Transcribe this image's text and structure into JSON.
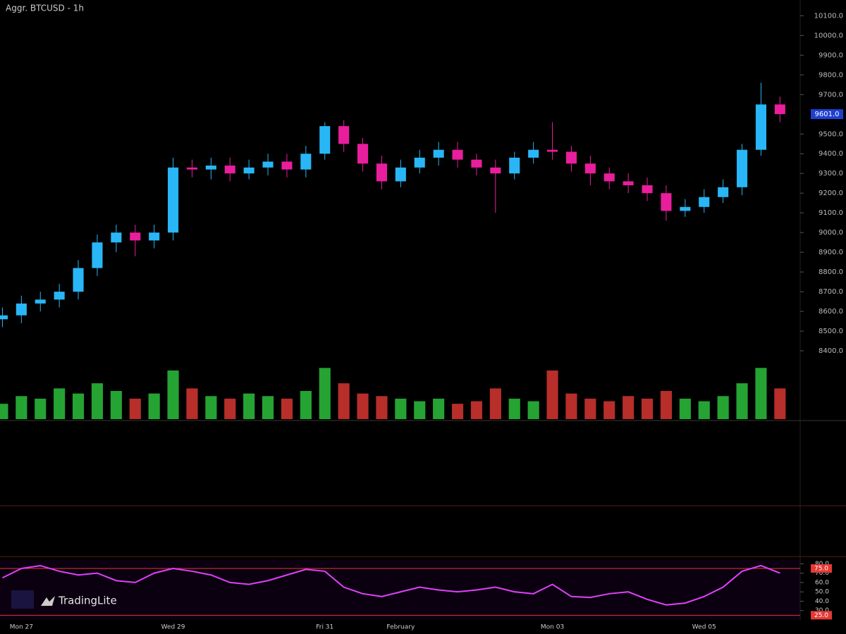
{
  "header": {
    "title": "Aggr. BTCUSD - 1h"
  },
  "logo": {
    "text": "TradingLite"
  },
  "chart_data": [
    {
      "type": "candlestick",
      "categories": [
        null,
        "Mon 27",
        null,
        null,
        null,
        null,
        null,
        null,
        null,
        "Wed 29",
        null,
        null,
        null,
        null,
        null,
        null,
        null,
        "Fri 31",
        null,
        null,
        null,
        "February",
        null,
        null,
        null,
        null,
        null,
        null,
        null,
        "Mon 03",
        null,
        null,
        null,
        null,
        null,
        null,
        null,
        "Wed 05",
        null,
        null,
        null,
        null
      ],
      "opens": [
        8560,
        8580,
        8640,
        8660,
        8700,
        8820,
        8950,
        9000,
        8960,
        9000,
        9330,
        9320,
        9340,
        9300,
        9330,
        9360,
        9320,
        9400,
        9540,
        9450,
        9350,
        9260,
        9330,
        9380,
        9420,
        9370,
        9330,
        9300,
        9380,
        9420,
        9410,
        9350,
        9300,
        9260,
        9240,
        9200,
        9110,
        9130,
        9180,
        9230,
        9420,
        9650
      ],
      "highs": [
        8620,
        8680,
        8700,
        8740,
        8860,
        8990,
        9040,
        9040,
        9040,
        9380,
        9370,
        9380,
        9380,
        9370,
        9400,
        9400,
        9440,
        9560,
        9570,
        9480,
        9390,
        9370,
        9420,
        9460,
        9460,
        9400,
        9370,
        9410,
        9460,
        9560,
        9440,
        9390,
        9330,
        9300,
        9280,
        9240,
        9170,
        9220,
        9270,
        9450,
        9760,
        9690
      ],
      "lows": [
        8520,
        8540,
        8600,
        8620,
        8660,
        8780,
        8900,
        8880,
        8920,
        8960,
        9280,
        9270,
        9260,
        9270,
        9290,
        9280,
        9280,
        9370,
        9410,
        9310,
        9220,
        9230,
        9300,
        9340,
        9330,
        9290,
        9100,
        9270,
        9350,
        9370,
        9310,
        9240,
        9220,
        9200,
        9160,
        9060,
        9080,
        9100,
        9150,
        9190,
        9390,
        9560
      ],
      "closes": [
        8580,
        8640,
        8660,
        8700,
        8820,
        8950,
        9000,
        8960,
        9000,
        9330,
        9320,
        9340,
        9300,
        9330,
        9360,
        9320,
        9400,
        9540,
        9450,
        9350,
        9260,
        9330,
        9380,
        9420,
        9370,
        9330,
        9300,
        9380,
        9420,
        9410,
        9350,
        9300,
        9260,
        9240,
        9200,
        9110,
        9130,
        9180,
        9230,
        9420,
        9650,
        9601
      ],
      "up_color": "#29b6f6",
      "down_color": "#e91e9c",
      "ylim": [
        8350,
        10180
      ],
      "yticks": [
        {
          "value": 8400,
          "label": "8400.0"
        },
        {
          "value": 8500,
          "label": "8500.0"
        },
        {
          "value": 8600,
          "label": "8600.0"
        },
        {
          "value": 8700,
          "label": "8700.0"
        },
        {
          "value": 8800,
          "label": "8800.0"
        },
        {
          "value": 8900,
          "label": "8900.0"
        },
        {
          "value": 9000,
          "label": "9000.0"
        },
        {
          "value": 9100,
          "label": "9100.0"
        },
        {
          "value": 9200,
          "label": "9200.0"
        },
        {
          "value": 9300,
          "label": "9300.0"
        },
        {
          "value": 9400,
          "label": "9400.0"
        },
        {
          "value": 9500,
          "label": "9500.0"
        },
        {
          "value": 9700,
          "label": "9700.0"
        },
        {
          "value": 9800,
          "label": "9800.0"
        },
        {
          "value": 9900,
          "label": "9900.0"
        },
        {
          "value": 10000,
          "label": "10000.0"
        },
        {
          "value": 10100,
          "label": "10100.0"
        }
      ],
      "last_price": {
        "value": 9601,
        "label": "9601.0"
      }
    },
    {
      "type": "bar",
      "values": [
        30,
        45,
        40,
        60,
        50,
        70,
        55,
        40,
        50,
        95,
        60,
        45,
        40,
        50,
        45,
        40,
        55,
        100,
        70,
        50,
        45,
        40,
        35,
        40,
        30,
        35,
        60,
        40,
        35,
        95,
        50,
        40,
        35,
        45,
        40,
        55,
        40,
        35,
        45,
        70,
        100,
        60
      ],
      "up_color": "#2ecc40",
      "down_color": "#e53935",
      "ylim": [
        0,
        110
      ]
    },
    {
      "type": "line",
      "values": [
        65,
        75,
        78,
        72,
        68,
        70,
        62,
        60,
        70,
        75,
        72,
        68,
        60,
        58,
        62,
        68,
        74,
        72,
        55,
        48,
        45,
        50,
        55,
        52,
        50,
        52,
        55,
        50,
        48,
        58,
        45,
        44,
        48,
        50,
        42,
        36,
        38,
        45,
        55,
        72,
        78,
        70
      ],
      "color": "#e040fb",
      "ylim": [
        20,
        84
      ],
      "yticks": [
        {
          "value": 30,
          "label": "30.0"
        },
        {
          "value": 40,
          "label": "40.0"
        },
        {
          "value": 50,
          "label": "50.0"
        },
        {
          "value": 60,
          "label": "60.0"
        },
        {
          "value": 70,
          "label": "70.0"
        },
        {
          "value": 80,
          "label": "80.0"
        }
      ],
      "levels": [
        {
          "value": 75,
          "label": "75.0"
        },
        {
          "value": 25,
          "label": "25.0"
        }
      ],
      "level_color": "#e53935"
    }
  ]
}
